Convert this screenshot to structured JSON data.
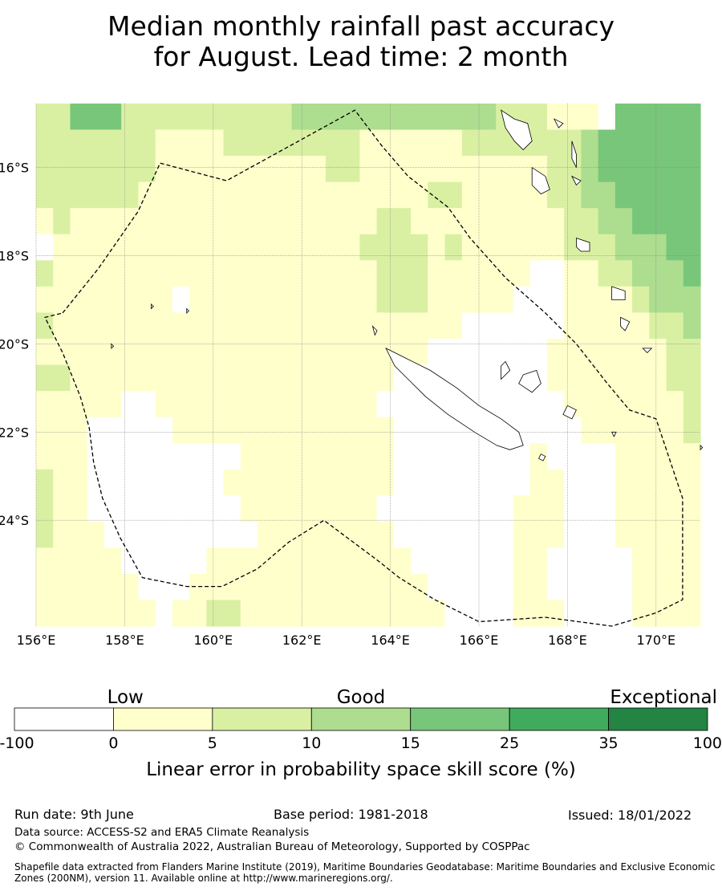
{
  "title": {
    "line1": "Median monthly rainfall past accuracy",
    "line2": "for August. Lead time: 2 month"
  },
  "map": {
    "lon_range": [
      156,
      171
    ],
    "lat_range": [
      -14.5,
      -26.3
    ],
    "cell_size_deg": 0.833,
    "lon_ticks": [
      {
        "value": 156,
        "label": "156°E"
      },
      {
        "value": 158,
        "label": "158°E"
      },
      {
        "value": 160,
        "label": "160°E"
      },
      {
        "value": 162,
        "label": "162°E"
      },
      {
        "value": 164,
        "label": "164°E"
      },
      {
        "value": 166,
        "label": "166°E"
      },
      {
        "value": 168,
        "label": "168°E"
      },
      {
        "value": 170,
        "label": "170°E"
      }
    ],
    "lat_ticks": [
      {
        "value": -16,
        "label": "16°S"
      },
      {
        "value": -18,
        "label": "18°S"
      },
      {
        "value": -20,
        "label": "20°S"
      },
      {
        "value": -22,
        "label": "22°S"
      },
      {
        "value": -24,
        "label": "24°S"
      }
    ],
    "grid_rows": [
      "1333222222222222222222222222222222222222222222222222222222222222222222221111111111111111111111",
      "2333322222211111111111222222222222222222222222222222222222222222222222222222221111111111111111"
    ],
    "field_rows": [
      "224442222222222333333333333222111044444",
      "222222211112222222211111122222223444444",
      "222222211111111112211111111111223444444",
      "222222111111111111111112211111223344444",
      "121111111111111111112211111111122334444",
      "011111111111111111122221211111122233344",
      "211111111111111111112221111110011223334",
      "111111110111111111112221111100011112333",
      "211111111111111111111111100000011111223",
      "111111111111111111111110000000111111122",
      "221111111111111111111000000000111111122",
      "111110011111111111110000000000011111112",
      "111000001111111111111000000000001111112",
      "111000000000111111111000000001000011111",
      "211000000001111111111000000001100011111",
      "211000000000111111110000000011100011111",
      "211100000000011111111000000011100011111",
      "111110000011111111111100000011000001111",
      "111111000111111111111110000011000001111",
      "111111101122111111111111000011100001111"
    ],
    "eez_boundary": [
      [
        156.6,
        -19.3
      ],
      [
        157.4,
        -18.3
      ],
      [
        158.3,
        -17.0
      ],
      [
        158.8,
        -15.9
      ],
      [
        160.3,
        -16.3
      ],
      [
        163.2,
        -14.7
      ],
      [
        163.8,
        -15.5
      ],
      [
        164.4,
        -16.2
      ],
      [
        165.3,
        -16.9
      ],
      [
        165.8,
        -17.6
      ],
      [
        166.6,
        -18.5
      ],
      [
        167.5,
        -19.3
      ],
      [
        168.2,
        -20.0
      ],
      [
        168.9,
        -20.9
      ],
      [
        169.4,
        -21.5
      ],
      [
        170.0,
        -21.7
      ],
      [
        170.6,
        -23.5
      ],
      [
        170.6,
        -25.8
      ],
      [
        170.0,
        -26.1
      ],
      [
        169.0,
        -26.4
      ],
      [
        167.5,
        -26.2
      ],
      [
        166.0,
        -26.3
      ],
      [
        165.0,
        -25.8
      ],
      [
        164.2,
        -25.3
      ],
      [
        163.7,
        -24.9
      ],
      [
        162.5,
        -24.0
      ],
      [
        161.7,
        -24.5
      ],
      [
        161.0,
        -25.1
      ],
      [
        160.2,
        -25.5
      ],
      [
        159.4,
        -25.5
      ],
      [
        158.4,
        -25.3
      ],
      [
        157.9,
        -24.4
      ],
      [
        157.5,
        -23.5
      ],
      [
        157.3,
        -22.7
      ],
      [
        157.2,
        -21.9
      ],
      [
        157.0,
        -21.2
      ],
      [
        156.6,
        -20.2
      ],
      [
        156.2,
        -19.4
      ]
    ],
    "colors": {
      "bin0": "#ffffff",
      "bin1": "#ffffcc",
      "bin2": "#d9f0a3",
      "bin3": "#addd8e",
      "bin4": "#78c679",
      "bin5": "#41ab5d",
      "bin6": "#238443",
      "grid": "#888888",
      "boundary": "#000000",
      "land": "#000000"
    }
  },
  "legend": {
    "categories": [
      {
        "label": "Low",
        "position": 0.16
      },
      {
        "label": "Good",
        "position": 0.5
      },
      {
        "label": "Exceptional",
        "position": 0.98
      }
    ],
    "bins": [
      "#ffffff",
      "#ffffcc",
      "#d9f0a3",
      "#addd8e",
      "#78c679",
      "#41ab5d",
      "#238443"
    ],
    "tick_labels": [
      "-100",
      "0",
      "5",
      "10",
      "15",
      "25",
      "35",
      "100"
    ],
    "xlabel": "Linear error in probability space skill score (%)"
  },
  "footer": {
    "run_date": "Run date: 9th June",
    "base_period": "Base period: 1981-2018",
    "issued": "Issued: 18/01/2022",
    "data_source": "Data source: ACCESS-S2 and ERA5 Climate Reanalysis",
    "copyright": "© Commonwealth of Australia 2022, Australian Bureau of Meteorology, Supported by COSPPac",
    "shapefile": "Shapefile data extracted from Flanders Marine Institute (2019), Maritime Boundaries Geodatabase: Maritime Boundaries and Exclusive Economic Zones (200NM), version 11. Available online at http://www.marineregions.org/."
  }
}
